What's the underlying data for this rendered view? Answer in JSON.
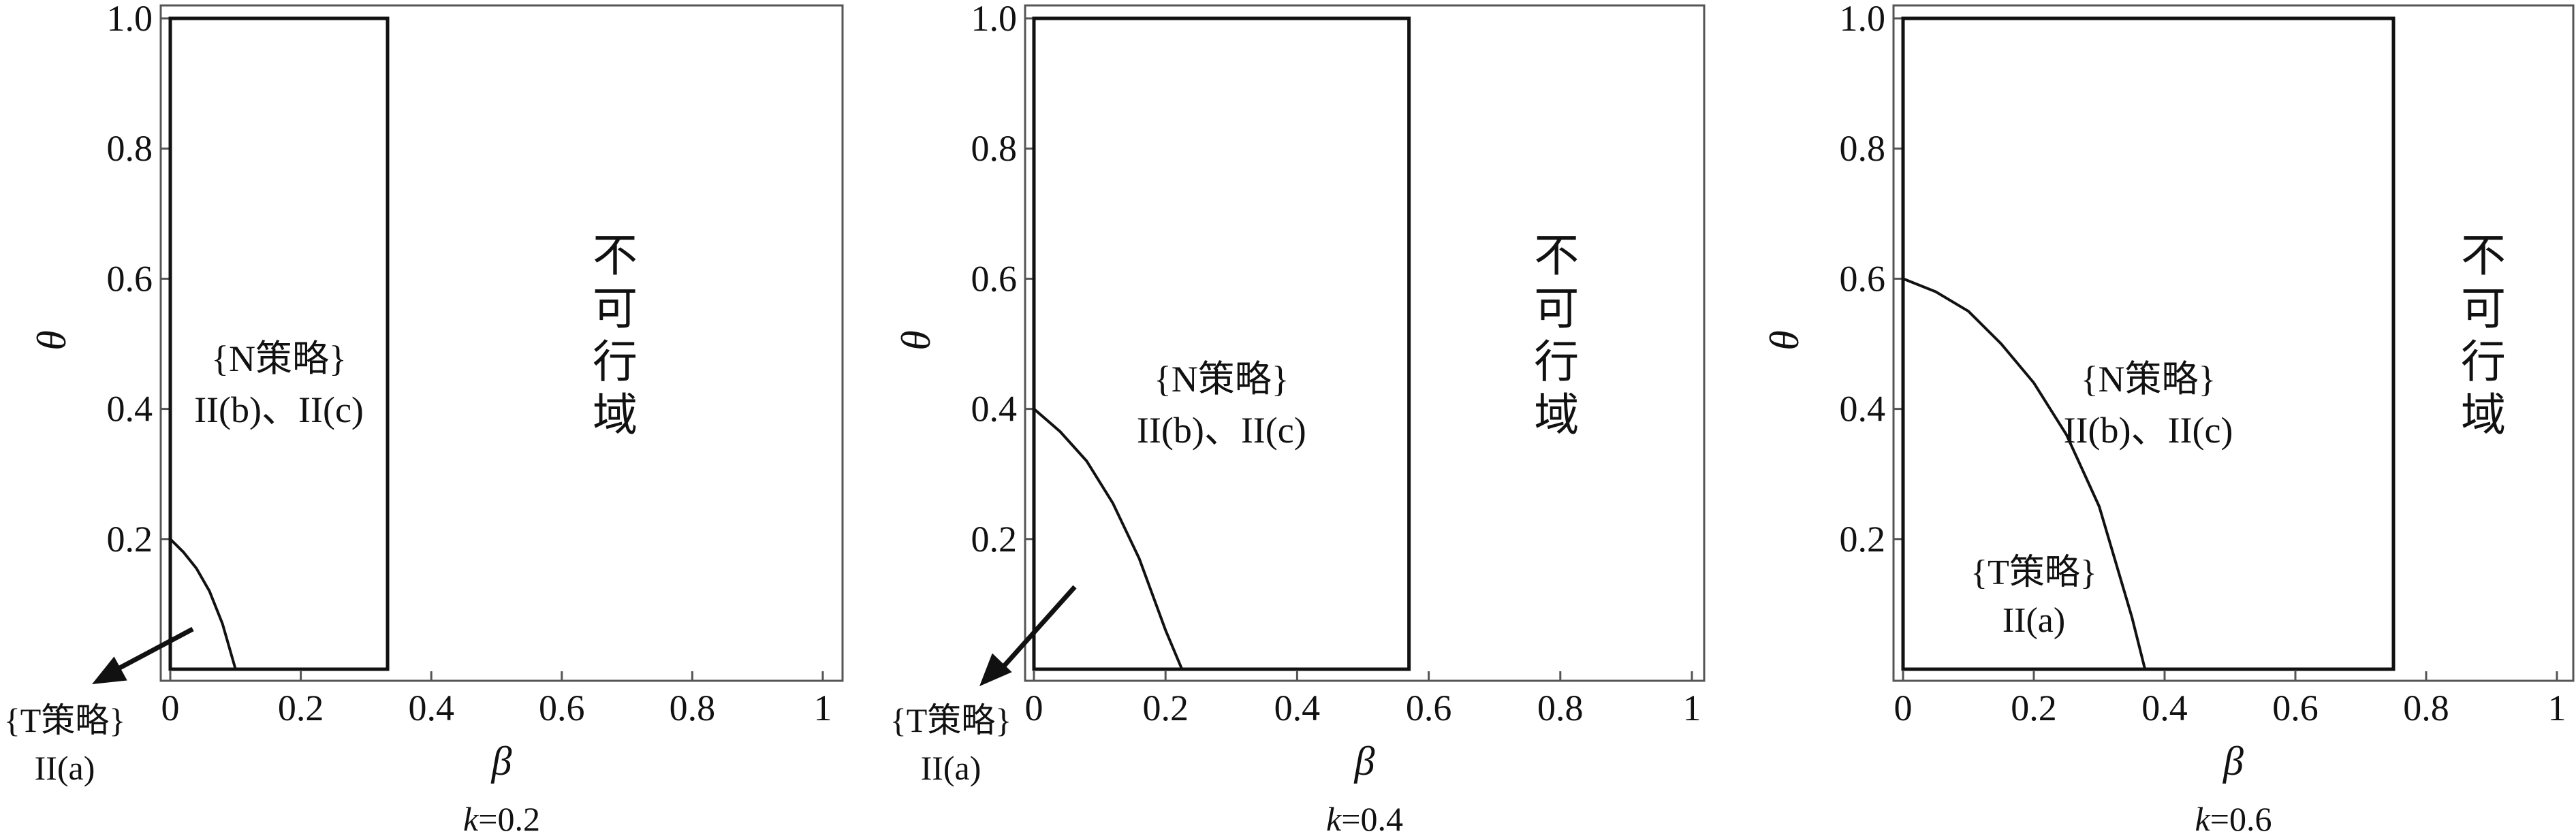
{
  "chart_data": [
    {
      "type": "region",
      "panel_label": "k=0.2",
      "panel_label_parts": [
        "k",
        "=0.2"
      ],
      "xlabel": "β",
      "ylabel": "θ",
      "xlim": [
        0,
        1
      ],
      "ylim": [
        0,
        1
      ],
      "xticks": [
        "0",
        "0.2",
        "0.4",
        "0.6",
        "0.8",
        "1"
      ],
      "yticks": [
        "0.2",
        "0.4",
        "0.6",
        "0.8",
        "1.0"
      ],
      "feasible_region": {
        "beta": [
          0,
          0.333
        ],
        "theta": [
          0,
          1.0
        ]
      },
      "boundary_curve": {
        "x": [
          0,
          0.02,
          0.04,
          0.06,
          0.08,
          0.1
        ],
        "y": [
          0.2,
          0.18,
          0.155,
          0.12,
          0.07,
          0.0
        ]
      },
      "region_labels": {
        "n_strategy": [
          "{N策略}",
          "II(b)、II(c)"
        ],
        "t_strategy": [
          "{T策略}",
          "II(a)"
        ],
        "infeasible": [
          "不",
          "可",
          "行",
          "域"
        ]
      },
      "t_label_arrow": true
    },
    {
      "type": "region",
      "panel_label": "k=0.4",
      "panel_label_parts": [
        "k",
        "=0.4"
      ],
      "xlabel": "β",
      "ylabel": "θ",
      "xlim": [
        0,
        1
      ],
      "ylim": [
        0,
        1
      ],
      "xticks": [
        "0",
        "0.2",
        "0.4",
        "0.6",
        "0.8",
        "1"
      ],
      "yticks": [
        "0.2",
        "0.4",
        "0.6",
        "0.8",
        "1.0"
      ],
      "feasible_region": {
        "beta": [
          0,
          0.57
        ],
        "theta": [
          0,
          1.0
        ]
      },
      "boundary_curve": {
        "x": [
          0,
          0.04,
          0.08,
          0.12,
          0.16,
          0.2,
          0.225
        ],
        "y": [
          0.4,
          0.365,
          0.32,
          0.255,
          0.17,
          0.06,
          0.0
        ]
      },
      "region_labels": {
        "n_strategy": [
          "{N策略}",
          "II(b)、II(c)"
        ],
        "t_strategy": [
          "{T策略}",
          "II(a)"
        ],
        "infeasible": [
          "不",
          "可",
          "行",
          "域"
        ]
      },
      "t_label_arrow": true
    },
    {
      "type": "region",
      "panel_label": "k=0.6",
      "panel_label_parts": [
        "k",
        "=0.6"
      ],
      "xlabel": "β",
      "ylabel": "θ",
      "xlim": [
        0,
        1
      ],
      "ylim": [
        0,
        1
      ],
      "xticks": [
        "0",
        "0.2",
        "0.4",
        "0.6",
        "0.8",
        "1"
      ],
      "yticks": [
        "0.2",
        "0.4",
        "0.6",
        "0.8",
        "1.0"
      ],
      "feasible_region": {
        "beta": [
          0,
          0.75
        ],
        "theta": [
          0,
          1.0
        ]
      },
      "boundary_curve": {
        "x": [
          0,
          0.05,
          0.1,
          0.15,
          0.2,
          0.25,
          0.3,
          0.35,
          0.37
        ],
        "y": [
          0.6,
          0.58,
          0.55,
          0.5,
          0.44,
          0.36,
          0.25,
          0.08,
          0.0
        ]
      },
      "region_labels": {
        "n_strategy": [
          "{N策略}",
          "II(b)、II(c)"
        ],
        "t_strategy": [
          "{T策略}",
          "II(a)"
        ],
        "infeasible": [
          "不",
          "可",
          "行",
          "域"
        ]
      },
      "t_label_arrow": false
    }
  ]
}
